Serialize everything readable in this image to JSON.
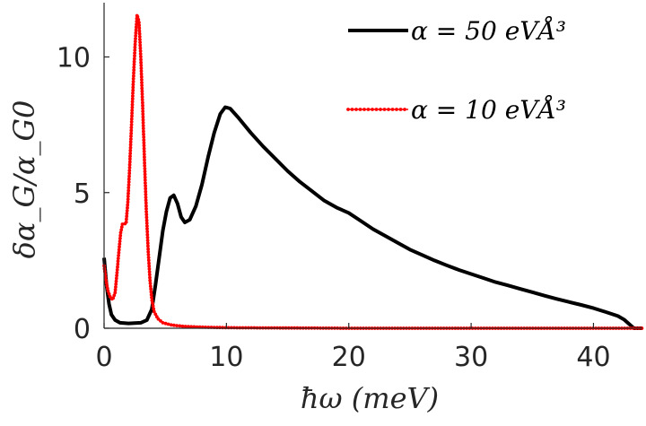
{
  "chart_data": {
    "type": "line",
    "title": "",
    "xlabel": "ħω (meV)",
    "ylabel": "δα_G/α_G0",
    "xlim": [
      0,
      44
    ],
    "ylim": [
      0,
      12
    ],
    "xticks": [
      0,
      10,
      20,
      30,
      40
    ],
    "yticks": [
      0,
      5,
      10
    ],
    "x_tick_labels": [
      "0",
      "10",
      "20",
      "30",
      "40"
    ],
    "y_tick_labels": [
      "0",
      "5",
      "10"
    ],
    "grid": false,
    "legend_position": "top-right",
    "series": [
      {
        "name": "α = 50 eVÅ³",
        "color": "#000000",
        "style": "solid",
        "points": [
          [
            0.0,
            2.6
          ],
          [
            0.2,
            1.6
          ],
          [
            0.4,
            0.9
          ],
          [
            0.6,
            0.5
          ],
          [
            0.9,
            0.3
          ],
          [
            1.3,
            0.2
          ],
          [
            2.0,
            0.18
          ],
          [
            3.0,
            0.2
          ],
          [
            3.5,
            0.3
          ],
          [
            3.9,
            0.7
          ],
          [
            4.2,
            1.6
          ],
          [
            4.5,
            2.6
          ],
          [
            4.8,
            3.6
          ],
          [
            5.1,
            4.3
          ],
          [
            5.4,
            4.8
          ],
          [
            5.7,
            4.9
          ],
          [
            6.0,
            4.6
          ],
          [
            6.3,
            4.1
          ],
          [
            6.6,
            3.9
          ],
          [
            7.0,
            4.0
          ],
          [
            7.5,
            4.5
          ],
          [
            8.0,
            5.3
          ],
          [
            8.5,
            6.3
          ],
          [
            9.0,
            7.2
          ],
          [
            9.5,
            7.9
          ],
          [
            9.9,
            8.15
          ],
          [
            10.3,
            8.1
          ],
          [
            11.0,
            7.75
          ],
          [
            12.0,
            7.2
          ],
          [
            13.0,
            6.7
          ],
          [
            14.0,
            6.25
          ],
          [
            15.0,
            5.8
          ],
          [
            16.0,
            5.4
          ],
          [
            17.0,
            5.05
          ],
          [
            18.0,
            4.7
          ],
          [
            19.0,
            4.45
          ],
          [
            20.0,
            4.25
          ],
          [
            21.0,
            3.95
          ],
          [
            22.0,
            3.65
          ],
          [
            23.0,
            3.4
          ],
          [
            24.0,
            3.15
          ],
          [
            25.0,
            2.9
          ],
          [
            26.0,
            2.7
          ],
          [
            27.0,
            2.5
          ],
          [
            28.0,
            2.32
          ],
          [
            29.0,
            2.15
          ],
          [
            30.0,
            2.0
          ],
          [
            31.0,
            1.85
          ],
          [
            32.0,
            1.7
          ],
          [
            33.0,
            1.58
          ],
          [
            34.0,
            1.45
          ],
          [
            35.0,
            1.33
          ],
          [
            36.0,
            1.2
          ],
          [
            37.0,
            1.08
          ],
          [
            38.0,
            0.97
          ],
          [
            39.0,
            0.86
          ],
          [
            40.0,
            0.74
          ],
          [
            41.0,
            0.6
          ],
          [
            42.0,
            0.45
          ],
          [
            42.5,
            0.32
          ],
          [
            43.0,
            0.12
          ],
          [
            43.3,
            0.0
          ],
          [
            44.0,
            0.0
          ]
        ]
      },
      {
        "name": "α = 10 eVÅ³",
        "color": "#ff0000",
        "style": "dotted-line",
        "points": [
          [
            0.0,
            2.3
          ],
          [
            0.15,
            1.8
          ],
          [
            0.3,
            1.4
          ],
          [
            0.5,
            1.15
          ],
          [
            0.7,
            1.05
          ],
          [
            0.9,
            1.3
          ],
          [
            1.05,
            2.0
          ],
          [
            1.2,
            2.8
          ],
          [
            1.35,
            3.5
          ],
          [
            1.5,
            3.85
          ],
          [
            1.65,
            3.85
          ],
          [
            1.8,
            3.85
          ],
          [
            1.95,
            4.7
          ],
          [
            2.1,
            6.0
          ],
          [
            2.25,
            7.6
          ],
          [
            2.4,
            9.2
          ],
          [
            2.55,
            10.6
          ],
          [
            2.7,
            11.55
          ],
          [
            2.85,
            11.3
          ],
          [
            3.0,
            10.0
          ],
          [
            3.15,
            8.2
          ],
          [
            3.3,
            6.2
          ],
          [
            3.45,
            4.4
          ],
          [
            3.6,
            2.9
          ],
          [
            3.75,
            1.8
          ],
          [
            3.9,
            1.05
          ],
          [
            4.1,
            0.6
          ],
          [
            4.4,
            0.35
          ],
          [
            4.8,
            0.2
          ],
          [
            5.5,
            0.12
          ],
          [
            6.5,
            0.07
          ],
          [
            8.0,
            0.04
          ],
          [
            10.0,
            0.02
          ],
          [
            15.0,
            0.01
          ],
          [
            20.0,
            0.0
          ],
          [
            44.0,
            0.0
          ]
        ]
      }
    ]
  },
  "legend": {
    "items": [
      {
        "label": "α = 50 eVÅ³",
        "color": "#000000"
      },
      {
        "label": "α = 10 eVÅ³",
        "color": "#ff0000"
      }
    ]
  },
  "axes": {
    "xlabel": "ħω (meV)",
    "ylabel": "δα_G/α_G0"
  }
}
